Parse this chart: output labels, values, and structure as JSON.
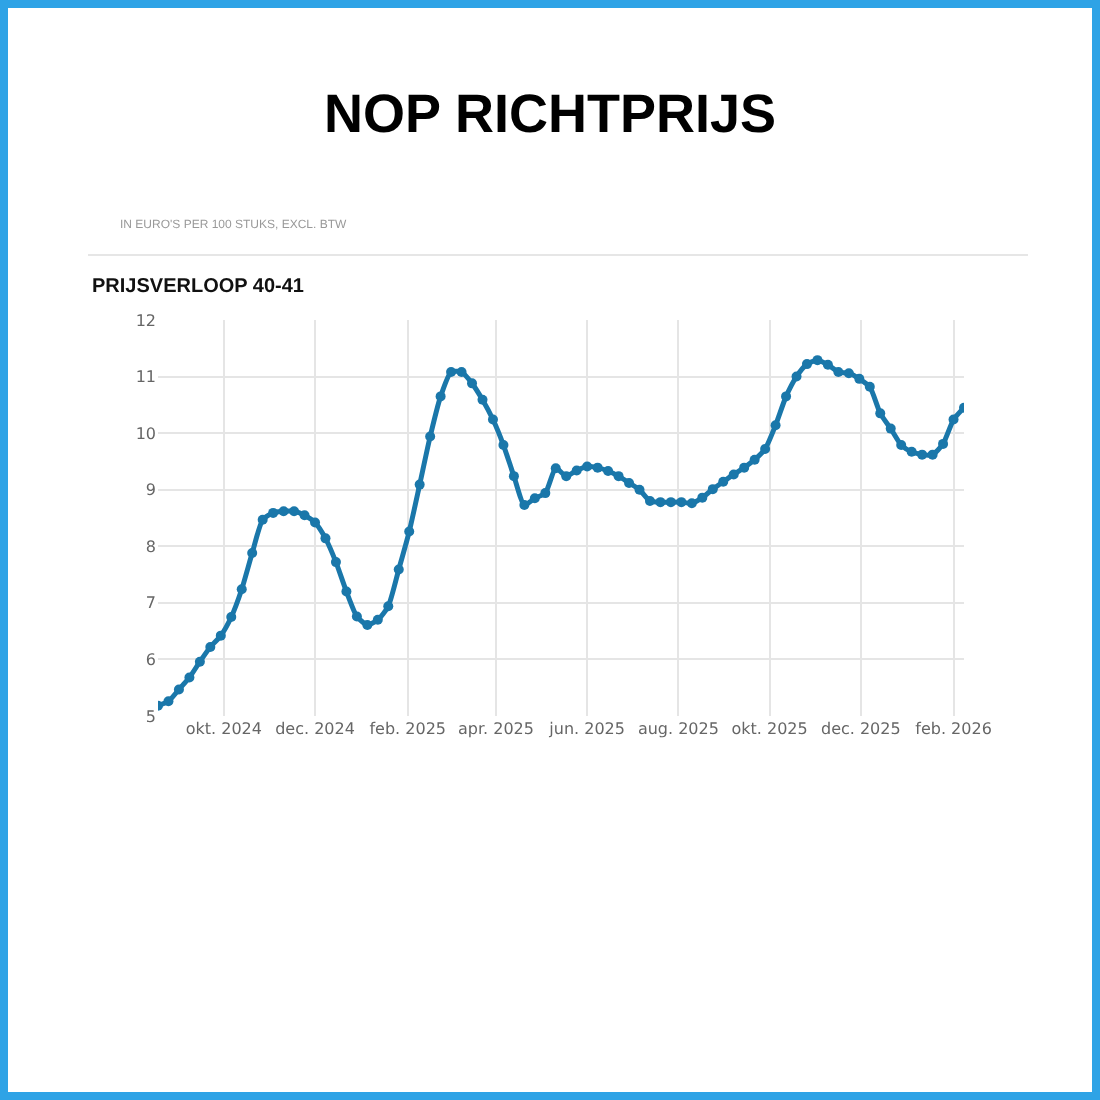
{
  "chart_data": {
    "type": "line",
    "title": "NOP RICHTPRIJS",
    "subtitle": "IN EURO'S PER 100 STUKS, EXCL. BTW",
    "annotations": [
      "PRIJSVERLOOP 40-41"
    ],
    "x": [
      "2024-08-18",
      "2024-08-25",
      "2024-09-01",
      "2024-09-08",
      "2024-09-15",
      "2024-09-22",
      "2024-09-29",
      "2024-10-06",
      "2024-10-13",
      "2024-10-20",
      "2024-10-27",
      "2024-11-03",
      "2024-11-10",
      "2024-11-17",
      "2024-11-24",
      "2024-12-01",
      "2024-12-08",
      "2024-12-15",
      "2024-12-22",
      "2024-12-29",
      "2025-01-05",
      "2025-01-12",
      "2025-01-19",
      "2025-01-26",
      "2025-02-02",
      "2025-02-09",
      "2025-02-16",
      "2025-02-23",
      "2025-03-02",
      "2025-03-09",
      "2025-03-16",
      "2025-03-23",
      "2025-03-30",
      "2025-04-06",
      "2025-04-13",
      "2025-04-20",
      "2025-04-27",
      "2025-05-04",
      "2025-05-11",
      "2025-05-18",
      "2025-05-25",
      "2025-06-01",
      "2025-06-08",
      "2025-06-15",
      "2025-06-22",
      "2025-06-29",
      "2025-07-06",
      "2025-07-13",
      "2025-07-20",
      "2025-07-27",
      "2025-08-03",
      "2025-08-10",
      "2025-08-17",
      "2025-08-24",
      "2025-08-31",
      "2025-09-07",
      "2025-09-14",
      "2025-09-21",
      "2025-09-28",
      "2025-10-05",
      "2025-10-12",
      "2025-10-19",
      "2025-10-26",
      "2025-11-02",
      "2025-11-09",
      "2025-11-16",
      "2025-11-23",
      "2025-11-30",
      "2025-12-07",
      "2025-12-14",
      "2025-12-21",
      "2025-12-28",
      "2026-01-04",
      "2026-01-11",
      "2026-01-18",
      "2026-01-25",
      "2026-02-01",
      "2026-02-08"
    ],
    "series": [
      {
        "color": "#1a77aa",
        "values": [
          5.18,
          5.26,
          5.47,
          5.68,
          5.96,
          6.22,
          6.42,
          6.75,
          7.24,
          7.88,
          8.47,
          8.59,
          8.62,
          8.62,
          8.55,
          8.42,
          8.14,
          7.72,
          7.2,
          6.76,
          6.61,
          6.7,
          6.94,
          7.59,
          8.26,
          9.09,
          9.94,
          10.65,
          11.08,
          11.08,
          10.88,
          10.59,
          10.24,
          9.79,
          9.24,
          8.73,
          8.85,
          8.94,
          9.38,
          9.24,
          9.34,
          9.41,
          9.39,
          9.33,
          9.24,
          9.12,
          9.0,
          8.8,
          8.78,
          8.78,
          8.78,
          8.76,
          8.86,
          9.01,
          9.14,
          9.27,
          9.39,
          9.53,
          9.72,
          10.14,
          10.65,
          11.0,
          11.22,
          11.29,
          11.21,
          11.08,
          11.06,
          10.96,
          10.82,
          10.35,
          10.08,
          9.79,
          9.67,
          9.62,
          9.62,
          9.81,
          10.24,
          10.45
        ]
      }
    ],
    "xlim": [
      "2024-08-18",
      "2026-02-08"
    ],
    "xticks": [
      {
        "value": "2024-10-01",
        "label": "okt. 2024"
      },
      {
        "value": "2024-12-01",
        "label": "dec. 2024"
      },
      {
        "value": "2025-02-01",
        "label": "feb. 2025"
      },
      {
        "value": "2025-04-01",
        "label": "apr. 2025"
      },
      {
        "value": "2025-06-01",
        "label": "jun. 2025"
      },
      {
        "value": "2025-08-01",
        "label": "aug. 2025"
      },
      {
        "value": "2025-10-01",
        "label": "okt. 2025"
      },
      {
        "value": "2025-12-01",
        "label": "dec. 2025"
      },
      {
        "value": "2026-02-01",
        "label": "feb. 2026"
      }
    ],
    "ylim": [
      5,
      12
    ],
    "yticks": [
      5,
      6,
      7,
      8,
      9,
      10,
      11,
      12
    ],
    "grid": true,
    "legend": false,
    "marker": "circle",
    "line_style": "solid"
  }
}
